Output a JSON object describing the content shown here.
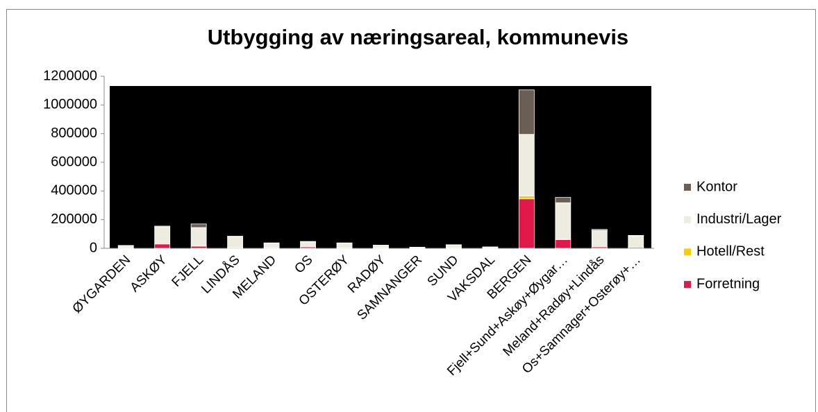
{
  "chart_data": {
    "type": "bar",
    "stacked": true,
    "title": "Utbygging av næringsareal, kommunevis",
    "categories": [
      "ØYGARDEN",
      "ASKØY",
      "FJELL",
      "LINDÅS",
      "MELAND",
      "OS",
      "OSTERØY",
      "RADØY",
      "SAMNANGER",
      "SUND",
      "VAKSDAL",
      "BERGEN",
      "Fjell+Sund+Askøy+Øygar…",
      "Meland+Radøy+Lindås",
      "Os+Samnager+Osterøy+…"
    ],
    "series": [
      {
        "name": "Forretning",
        "color": "#e0194a",
        "values": [
          3000,
          30000,
          15000,
          5000,
          3000,
          10000,
          3000,
          2000,
          1000,
          3000,
          1000,
          345000,
          60000,
          10000,
          7000
        ]
      },
      {
        "name": "Hotell/Rest",
        "color": "#ffcc00",
        "values": [
          0,
          0,
          0,
          0,
          0,
          0,
          0,
          0,
          0,
          0,
          0,
          20000,
          3000,
          0,
          0
        ]
      },
      {
        "name": "Industri/Lager",
        "color": "#eeece1",
        "values": [
          15000,
          120000,
          130000,
          75000,
          33000,
          35000,
          33000,
          18000,
          6000,
          20000,
          8000,
          430000,
          255000,
          115000,
          80000
        ]
      },
      {
        "name": "Kontor",
        "color": "#6b5e55",
        "values": [
          2000,
          5000,
          25000,
          5000,
          2000,
          3000,
          2000,
          2000,
          1000,
          2000,
          1000,
          310000,
          37000,
          7000,
          3000
        ]
      }
    ],
    "ylim": [
      0,
      1200000
    ],
    "yticks": [
      0,
      200000,
      400000,
      600000,
      800000,
      1000000,
      1200000
    ],
    "legend": "right"
  }
}
